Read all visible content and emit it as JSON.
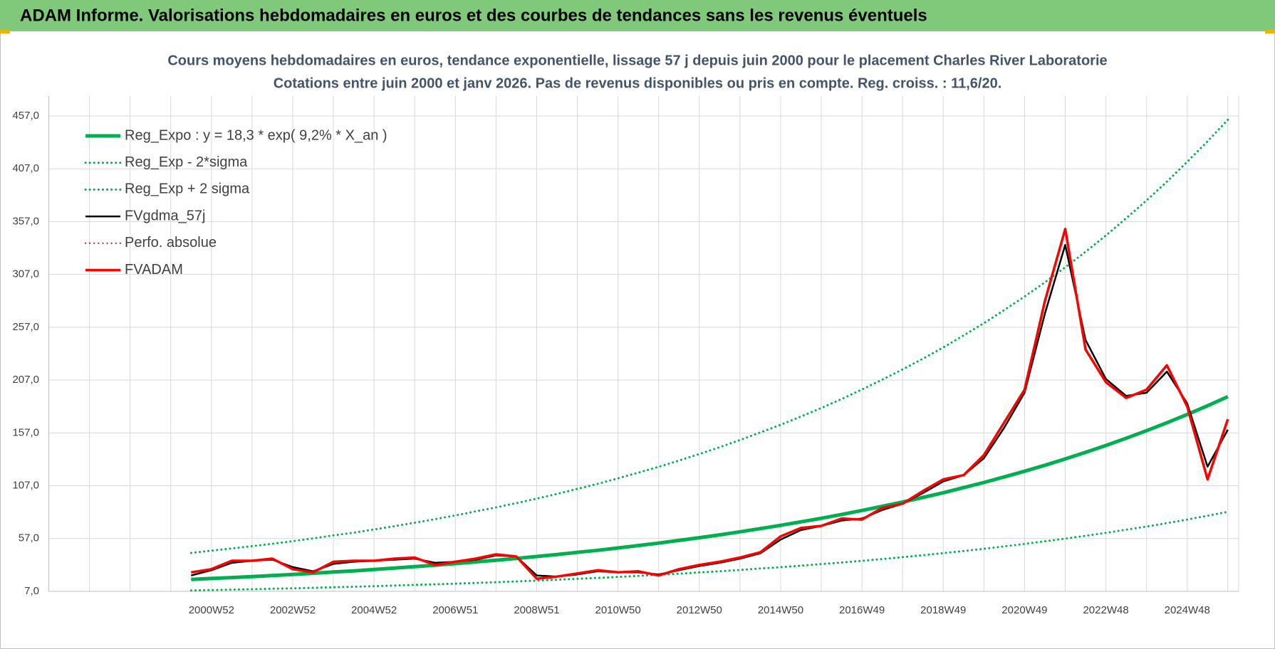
{
  "header": {
    "title": "ADAM Informe. Valorisations hebdomadaires en euros et des courbes de tendances sans les revenus éventuels"
  },
  "chart_data": {
    "type": "line",
    "title": "Cours moyens hebdomadaires en euros, tendance exponentielle, lissage 57 j depuis juin 2000 pour le placement Charles River Laboratorie",
    "subtitle": "Cotations entre juin 2000 et janv 2026.  Pas de revenus disponibles ou pris en compte. Reg. croiss. : 11,6/20.",
    "categories": [
      null,
      null,
      null,
      null,
      null,
      null,
      null,
      null,
      "2000W52",
      null,
      null,
      null,
      "2002W52",
      null,
      null,
      null,
      "2004W52",
      null,
      null,
      null,
      "2006W51",
      null,
      null,
      null,
      "2008W51",
      null,
      null,
      null,
      "2010W50",
      null,
      null,
      null,
      "2012W50",
      null,
      null,
      null,
      "2014W50",
      null,
      null,
      null,
      "2016W49",
      null,
      null,
      null,
      "2018W49",
      null,
      null,
      null,
      "2020W49",
      null,
      null,
      null,
      "2022W48",
      null,
      null,
      null,
      "2024W48",
      null,
      null
    ],
    "series": [
      {
        "name": "Reg_Expo : y = 18,3 * exp( 9,2% *  X_an )",
        "color": "#00b050",
        "line_style": "solid",
        "values": [
          null,
          null,
          null,
          null,
          null,
          null,
          null,
          18.3,
          19.2,
          20.1,
          21.0,
          22.0,
          23.0,
          24.1,
          25.3,
          26.4,
          27.7,
          29.0,
          30.4,
          31.8,
          33.3,
          34.9,
          36.5,
          38.2,
          40.0,
          41.9,
          43.9,
          45.9,
          48.1,
          50.4,
          52.7,
          55.2,
          57.8,
          60.5,
          63.4,
          66.4,
          69.5,
          72.8,
          76.2,
          79.8,
          83.6,
          87.5,
          91.6,
          95.9,
          100.4,
          105.2,
          110.1,
          115.3,
          120.7,
          126.4,
          132.4,
          138.6,
          145.1,
          152.0,
          159.1,
          166.6,
          174.5,
          182.7,
          191.3
        ]
      },
      {
        "name": "Reg_Exp - 2*sigma",
        "color": "#00b050",
        "line_style": "dotted",
        "values": [
          null,
          null,
          null,
          null,
          null,
          null,
          null,
          7.9,
          8.3,
          8.6,
          9.0,
          9.5,
          9.9,
          10.4,
          10.9,
          11.4,
          11.9,
          12.5,
          13.1,
          13.7,
          14.3,
          15.0,
          15.7,
          16.4,
          17.2,
          18.0,
          18.9,
          19.7,
          20.7,
          21.7,
          22.7,
          23.7,
          24.9,
          26.0,
          27.3,
          28.6,
          29.9,
          31.3,
          32.8,
          34.3,
          35.9,
          37.6,
          39.4,
          41.2,
          43.2,
          45.2,
          47.3,
          49.6,
          51.9,
          54.4,
          56.9,
          59.6,
          62.4,
          65.4,
          68.4,
          71.6,
          75.0,
          78.6,
          82.3
        ]
      },
      {
        "name": "Reg_Exp + 2 sigma",
        "color": "#00b050",
        "line_style": "dotted",
        "values": [
          null,
          null,
          null,
          null,
          null,
          null,
          null,
          43.4,
          45.5,
          47.6,
          49.8,
          52.1,
          54.5,
          57.1,
          60.0,
          62.6,
          65.6,
          68.7,
          72.0,
          75.4,
          78.9,
          82.7,
          86.5,
          90.5,
          94.8,
          99.3,
          104.0,
          108.8,
          114.0,
          119.4,
          124.9,
          130.8,
          137.0,
          143.4,
          150.3,
          157.4,
          164.7,
          172.5,
          180.6,
          189.1,
          198.1,
          207.4,
          217.1,
          227.3,
          237.9,
          249.3,
          260.9,
          273.3,
          286.1,
          299.6,
          313.8,
          328.5,
          343.9,
          360.2,
          377.1,
          394.8,
          413.6,
          433.0,
          453.4
        ]
      },
      {
        "name": "FVgdma_57j",
        "color": "#000000",
        "line_style": "solid",
        "values": [
          null,
          null,
          null,
          null,
          null,
          null,
          null,
          22,
          27,
          34,
          36,
          37,
          30,
          26,
          33,
          35,
          36,
          37,
          38,
          34,
          35,
          37,
          41,
          40,
          22,
          21,
          23,
          26,
          25,
          25,
          23,
          27,
          31,
          34,
          38,
          43,
          56,
          65,
          69,
          74,
          76,
          84,
          90,
          100,
          111,
          117,
          133,
          162,
          195,
          270,
          335,
          245,
          208,
          192,
          195,
          215,
          185,
          125,
          160
        ]
      },
      {
        "name": "Perfo. absolue",
        "color": "#c00000",
        "line_style": "dotted",
        "values": [
          null,
          null,
          null,
          null,
          null,
          null,
          null,
          null,
          null,
          null,
          null,
          null,
          null,
          null,
          null,
          null,
          null,
          null,
          null,
          null,
          null,
          null,
          null,
          null,
          null,
          null,
          null,
          null,
          null,
          null,
          null,
          null,
          null,
          null,
          null,
          null,
          null,
          null,
          null,
          null,
          null,
          null,
          null,
          null,
          null,
          null,
          null,
          null,
          null,
          null,
          null,
          null,
          null,
          null,
          null,
          null,
          null,
          null,
          null
        ]
      },
      {
        "name": "FVADAM",
        "color": "#ff0000",
        "line_style": "solid",
        "values": [
          null,
          null,
          null,
          null,
          null,
          null,
          null,
          25,
          28,
          36,
          36,
          38,
          28,
          25,
          35,
          36,
          36,
          38,
          39,
          32,
          35,
          38,
          42,
          40,
          19,
          21,
          24,
          27,
          25,
          26,
          22,
          28,
          32,
          35,
          39,
          44,
          59,
          67,
          69,
          76,
          75,
          86,
          90,
          102,
          113,
          117,
          136,
          167,
          198,
          282,
          350,
          236,
          205,
          190,
          198,
          221,
          182,
          113,
          170
        ]
      }
    ],
    "ylim": [
      7,
      457
    ],
    "yticks": [
      {
        "value": 7,
        "label": "7,0"
      },
      {
        "value": 57,
        "label": "57,0"
      },
      {
        "value": 107,
        "label": "107,0"
      },
      {
        "value": 157,
        "label": "157,0"
      },
      {
        "value": 207,
        "label": "207,0"
      },
      {
        "value": 257,
        "label": "257,0"
      },
      {
        "value": 307,
        "label": "307,0"
      },
      {
        "value": 357,
        "label": "357,0"
      },
      {
        "value": 407,
        "label": "407,0"
      },
      {
        "value": 457,
        "label": "457,0"
      }
    ],
    "grid": true,
    "legend": "top-left"
  }
}
